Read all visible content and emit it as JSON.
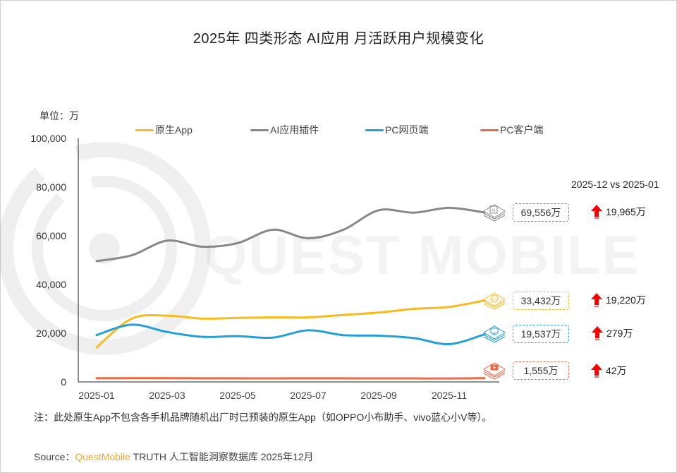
{
  "title": "2025年 四类形态 AI应用 月活跃用户规模变化",
  "unit_label": "单位：万",
  "compare_title": "2025-12 vs 2025-01",
  "watermark": "QUEST MOBILE",
  "note": "注：此处原生App不包含各手机品牌随机出厂时已预装的原生App（如OPPO小布助手、vivo蓝心小V等）。",
  "source": {
    "prefix": "Source：",
    "brand": "QuestMobile",
    "suffix": " TRUTH 人工智能洞察数据库 2025年12月"
  },
  "colors": {
    "native_app": "#FBBA1C",
    "ai_plugin": "#878787",
    "pc_web": "#23A0D9",
    "pc_client": "#EE6A46",
    "up_arrow": "#FF0000"
  },
  "legend": [
    {
      "label": "原生App",
      "color": "#FBBA1C"
    },
    {
      "label": "AI应用插件",
      "color": "#878787"
    },
    {
      "label": "PC网页端",
      "color": "#23A0D9"
    },
    {
      "label": "PC客户端",
      "color": "#EE6A46"
    }
  ],
  "end_labels": [
    {
      "series": "AI应用插件",
      "icon": "ai-plugin-icon",
      "value": "69,556万",
      "delta": "19,965万",
      "color": "#878787"
    },
    {
      "series": "原生App",
      "icon": "app-icon",
      "value": "33,432万",
      "delta": "19,220万",
      "color": "#FBBA1C"
    },
    {
      "series": "PC网页端",
      "icon": "monitor-icon",
      "value": "19,537万",
      "delta": "279万",
      "color": "#23A0D9"
    },
    {
      "series": "PC客户端",
      "icon": "laptop-icon",
      "value": "1,555万",
      "delta": "42万",
      "color": "#EE6A46"
    }
  ],
  "y_ticks": [
    "100,000",
    "80,000",
    "60,000",
    "40,000",
    "20,000",
    "0"
  ],
  "x_ticks": [
    "2025-01",
    "2025-03",
    "2025-05",
    "2025-07",
    "2025-09",
    "2025-11"
  ],
  "chart_data": {
    "type": "line",
    "title": "2025年 四类形态 AI应用 月活跃用户规模变化",
    "xlabel": "",
    "ylabel": "单位：万",
    "ylim": [
      0,
      100000
    ],
    "yticks": [
      0,
      20000,
      40000,
      60000,
      80000,
      100000
    ],
    "grid": false,
    "legend_position": "top",
    "x": [
      "2025-01",
      "2025-02",
      "2025-03",
      "2025-04",
      "2025-05",
      "2025-06",
      "2025-07",
      "2025-08",
      "2025-09",
      "2025-10",
      "2025-11",
      "2025-12"
    ],
    "series": [
      {
        "name": "原生App",
        "color": "#FBBA1C",
        "values": [
          14212,
          26000,
          27200,
          26000,
          26300,
          26500,
          26500,
          27500,
          28500,
          30000,
          30800,
          33432
        ]
      },
      {
        "name": "AI应用插件",
        "color": "#878787",
        "values": [
          49591,
          52000,
          58000,
          55500,
          57000,
          62500,
          59000,
          62500,
          70500,
          69500,
          71500,
          69556
        ]
      },
      {
        "name": "PC网页端",
        "color": "#23A0D9",
        "values": [
          19258,
          23500,
          20500,
          18500,
          18800,
          18200,
          21200,
          19200,
          19000,
          18000,
          15500,
          19537
        ]
      },
      {
        "name": "PC客户端",
        "color": "#EE6A46",
        "values": [
          1513,
          1550,
          1540,
          1500,
          1480,
          1450,
          1500,
          1470,
          1450,
          1440,
          1420,
          1555
        ]
      }
    ],
    "annotations": [
      {
        "text": "2025-12 vs 2025-01"
      },
      {
        "series": "AI应用插件",
        "end_value": "69,556万",
        "change": "+19,965万"
      },
      {
        "series": "原生App",
        "end_value": "33,432万",
        "change": "+19,220万"
      },
      {
        "series": "PC网页端",
        "end_value": "19,537万",
        "change": "+279万"
      },
      {
        "series": "PC客户端",
        "end_value": "1,555万",
        "change": "+42万"
      }
    ]
  }
}
